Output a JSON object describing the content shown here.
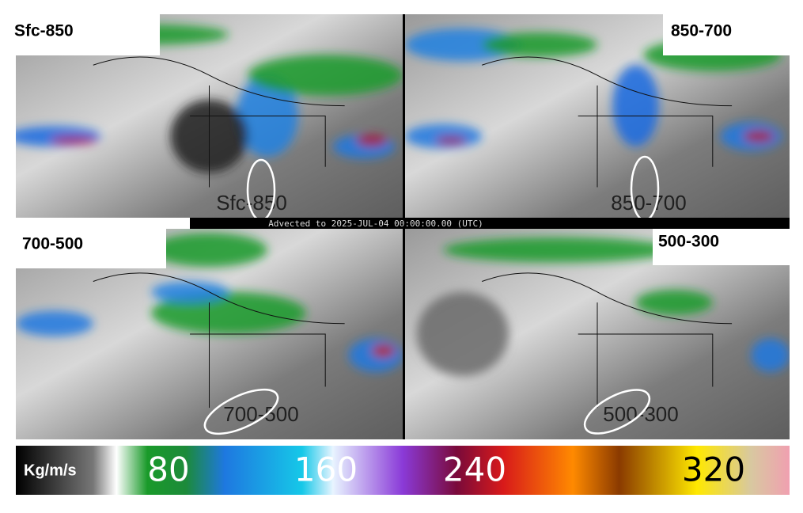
{
  "panels": [
    {
      "label": "Sfc-850",
      "map_label": "Sfc-850"
    },
    {
      "label": "850-700",
      "map_label": "850-700"
    },
    {
      "label": "700-500",
      "map_label": "700-500"
    },
    {
      "label": "500-300",
      "map_label": "500-300"
    }
  ],
  "timestamp": "Advected to 2025-JUL-04 00:00:00.00 (UTC)",
  "colorbar": {
    "unit": "Kg/m/s",
    "labels": [
      80,
      160,
      240,
      320
    ]
  }
}
